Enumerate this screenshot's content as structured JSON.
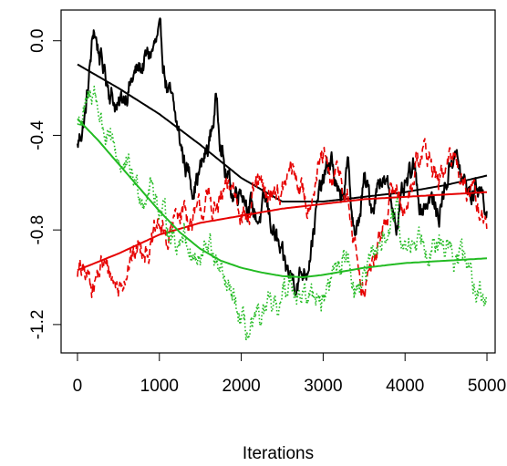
{
  "chart_data": {
    "type": "line",
    "title": "",
    "xlabel": "Iterations",
    "ylabel": "",
    "xlim": [
      -200,
      5100
    ],
    "ylim": [
      -1.32,
      0.13
    ],
    "xticks": [
      0,
      1000,
      2000,
      3000,
      4000,
      5000
    ],
    "xtick_labels": [
      "0",
      "1000",
      "2000",
      "3000",
      "4000",
      "5000"
    ],
    "yticks": [
      0.0,
      -0.4,
      -0.8,
      -1.2
    ],
    "ytick_labels": [
      "0.0",
      "-0.4",
      "-0.8",
      "-1.2"
    ],
    "grid": false,
    "legend": "none",
    "series": [
      {
        "style": "solid",
        "color": "#000000",
        "trace": {
          "x": [
            0,
            100,
            200,
            300,
            400,
            500,
            600,
            700,
            800,
            900,
            1000,
            1100,
            1200,
            1300,
            1400,
            1500,
            1600,
            1700,
            1800,
            1900,
            2000,
            2100,
            2200,
            2300,
            2400,
            2500,
            2600,
            2700,
            2800,
            2900,
            3000,
            3100,
            3200,
            3300,
            3400,
            3500,
            3600,
            3700,
            3800,
            3900,
            4000,
            4100,
            4200,
            4300,
            4400,
            4500,
            4600,
            4700,
            4800,
            4900,
            5000
          ],
          "y": [
            -0.45,
            -0.3,
            0.05,
            -0.1,
            -0.2,
            -0.3,
            -0.2,
            -0.15,
            -0.1,
            -0.05,
            0.0,
            -0.2,
            -0.35,
            -0.5,
            -0.6,
            -0.55,
            -0.45,
            -0.25,
            -0.55,
            -0.65,
            -0.6,
            -0.7,
            -0.75,
            -0.7,
            -0.8,
            -0.95,
            -1.0,
            -1.0,
            -0.95,
            -0.75,
            -0.6,
            -0.5,
            -0.7,
            -0.55,
            -0.85,
            -0.6,
            -0.7,
            -0.55,
            -0.65,
            -0.75,
            -0.65,
            -0.55,
            -0.7,
            -0.65,
            -0.75,
            -0.6,
            -0.45,
            -0.6,
            -0.65,
            -0.6,
            -0.7
          ]
        },
        "smooth": {
          "x": [
            0,
            500,
            1000,
            1500,
            2000,
            2500,
            3000,
            3500,
            4000,
            4500,
            5000
          ],
          "y": [
            -0.1,
            -0.2,
            -0.31,
            -0.44,
            -0.58,
            -0.68,
            -0.68,
            -0.66,
            -0.64,
            -0.61,
            -0.57
          ]
        }
      },
      {
        "style": "dashed",
        "color": "#e60000",
        "trace": {
          "x": [
            0,
            100,
            200,
            300,
            400,
            500,
            600,
            700,
            800,
            900,
            1000,
            1100,
            1200,
            1300,
            1400,
            1500,
            1600,
            1700,
            1800,
            1900,
            2000,
            2100,
            2200,
            2300,
            2400,
            2500,
            2600,
            2700,
            2800,
            2900,
            3000,
            3100,
            3200,
            3300,
            3400,
            3500,
            3600,
            3700,
            3800,
            3900,
            4000,
            4100,
            4200,
            4300,
            4400,
            4500,
            4600,
            4700,
            4800,
            4900,
            5000
          ],
          "y": [
            -0.97,
            -1.0,
            -1.02,
            -0.95,
            -0.98,
            -1.05,
            -0.95,
            -0.9,
            -0.85,
            -0.88,
            -0.78,
            -0.85,
            -0.75,
            -0.7,
            -0.78,
            -0.72,
            -0.68,
            -0.72,
            -0.65,
            -0.62,
            -0.7,
            -0.75,
            -0.6,
            -0.68,
            -0.62,
            -0.65,
            -0.55,
            -0.6,
            -0.7,
            -0.58,
            -0.5,
            -0.62,
            -0.55,
            -0.7,
            -0.9,
            -1.05,
            -0.95,
            -0.85,
            -0.7,
            -0.6,
            -0.75,
            -0.55,
            -0.45,
            -0.5,
            -0.6,
            -0.55,
            -0.5,
            -0.55,
            -0.65,
            -0.7,
            -0.8
          ]
        },
        "smooth": {
          "x": [
            0,
            500,
            1000,
            1500,
            2000,
            2500,
            3000,
            3500,
            4000,
            4500,
            5000
          ],
          "y": [
            -0.97,
            -0.9,
            -0.82,
            -0.77,
            -0.74,
            -0.71,
            -0.69,
            -0.67,
            -0.66,
            -0.65,
            -0.64
          ]
        }
      },
      {
        "style": "dotted",
        "color": "#22bb22",
        "trace": {
          "x": [
            0,
            100,
            200,
            300,
            400,
            500,
            600,
            700,
            800,
            900,
            1000,
            1100,
            1200,
            1300,
            1400,
            1500,
            1600,
            1700,
            1800,
            1900,
            2000,
            2100,
            2200,
            2300,
            2400,
            2500,
            2600,
            2700,
            2800,
            2900,
            3000,
            3100,
            3200,
            3300,
            3400,
            3500,
            3600,
            3700,
            3800,
            3900,
            4000,
            4100,
            4200,
            4300,
            4400,
            4500,
            4600,
            4700,
            4800,
            4900,
            5000
          ],
          "y": [
            -0.35,
            -0.3,
            -0.2,
            -0.35,
            -0.45,
            -0.5,
            -0.55,
            -0.6,
            -0.65,
            -0.6,
            -0.7,
            -0.78,
            -0.85,
            -0.8,
            -0.9,
            -0.95,
            -0.85,
            -0.95,
            -1.05,
            -1.1,
            -1.2,
            -1.25,
            -1.2,
            -1.15,
            -1.15,
            -1.1,
            -1.0,
            -1.05,
            -1.1,
            -1.05,
            -1.1,
            -1.0,
            -0.95,
            -0.9,
            -1.05,
            -1.0,
            -0.95,
            -0.85,
            -0.8,
            -0.75,
            -0.9,
            -0.85,
            -0.8,
            -0.85,
            -0.9,
            -0.85,
            -0.95,
            -0.9,
            -1.0,
            -1.05,
            -1.1
          ]
        },
        "smooth": {
          "x": [
            0,
            250,
            500,
            750,
            1000,
            1250,
            1500,
            1750,
            2000,
            2250,
            2500,
            2750,
            3000,
            3500,
            4000,
            4500,
            5000
          ],
          "y": [
            -0.33,
            -0.42,
            -0.52,
            -0.62,
            -0.72,
            -0.81,
            -0.88,
            -0.93,
            -0.96,
            -0.98,
            -0.995,
            -1.0,
            -0.99,
            -0.96,
            -0.94,
            -0.93,
            -0.92
          ]
        }
      }
    ]
  }
}
